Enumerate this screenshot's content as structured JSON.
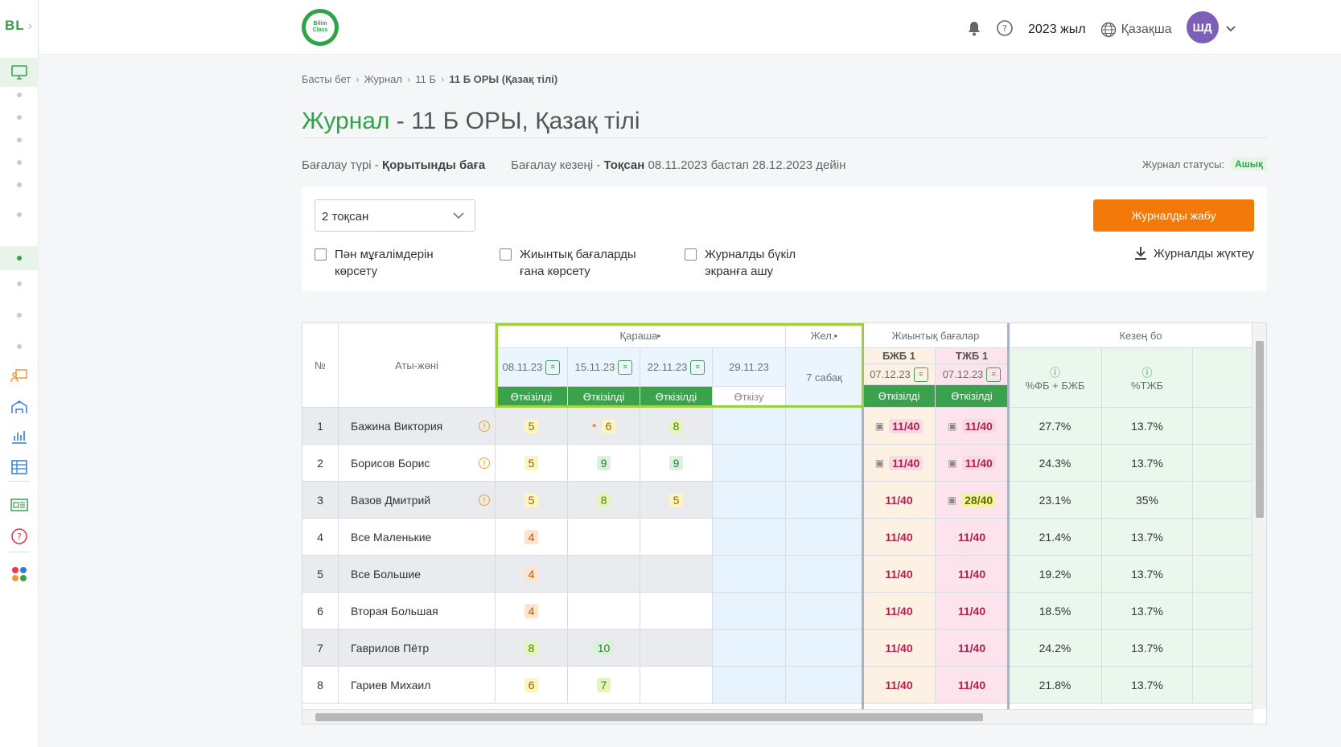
{
  "sidebar": {
    "logo": "BL"
  },
  "header": {
    "brand": "Bilim Class",
    "year": "2023 жыл",
    "language": "Қазақша",
    "avatar": "ШД"
  },
  "breadcrumb": [
    "Басты бет",
    "Журнал",
    "11 Б",
    "11 Б ОРЫ (Қазақ тілі)"
  ],
  "title": {
    "green": "Журнал",
    "rest": " - 11 Б ОРЫ, Қазақ тілі"
  },
  "meta": {
    "type_label": "Бағалау түрі - ",
    "type_value": "Қорытынды баға",
    "period_label": "Бағалау кезеңі - ",
    "period_value": "Тоқсан",
    "period_range": " 08.11.2023 бастап 28.12.2023 дейін",
    "status_label": "Журнал статусы:",
    "status_value": "Ашық"
  },
  "controls": {
    "select_value": "2 тоқсан",
    "close_button": "Журналды жабу",
    "download": "Журналды жүктеу",
    "checkboxes": [
      {
        "l1": "Пән мұғалімдерін",
        "l2": "көрсету"
      },
      {
        "l1": "Жиынтық бағаларды",
        "l2": "ғана көрсету"
      },
      {
        "l1": "Журналды бүкіл",
        "l2": "экранға ашу"
      }
    ]
  },
  "table": {
    "col_no": "№",
    "col_name": "Аты-жөні",
    "month1": "Қараша",
    "month2": "Жел.",
    "summary": "Жиынтық бағалар",
    "period": "Кезең бо",
    "dates": [
      "08.11.23",
      "15.11.23",
      "22.11.23",
      "29.11.23"
    ],
    "lessons": "7 сабақ",
    "bands": [
      "Өткізілді",
      "Өткізілді",
      "Өткізілді",
      "Өткізу"
    ],
    "bjb": {
      "label": "БЖБ 1",
      "date": "07.12.23",
      "band": "Өткізілді"
    },
    "tjb": {
      "label": "ТЖБ 1",
      "date": "07.12.23",
      "band": "Өткізілді"
    },
    "pct1": "%ФБ + БЖБ",
    "pct2": "%ТЖБ",
    "rows": [
      {
        "no": "1",
        "name": "Бажина Виктория",
        "info": true,
        "g": [
          "5",
          "6",
          "8"
        ],
        "bjb": "11/40",
        "tjb": "11/40",
        "p1": "27.7%",
        "p2": "13.7%"
      },
      {
        "no": "2",
        "name": "Борисов Борис",
        "info": true,
        "g": [
          "5",
          "9",
          "9"
        ],
        "bjb": "11/40",
        "tjb": "11/40",
        "p1": "24.3%",
        "p2": "13.7%"
      },
      {
        "no": "3",
        "name": "Вазов Дмитрий",
        "info": true,
        "g": [
          "5",
          "8",
          "5"
        ],
        "bjb": "11/40",
        "tjb": "28/40",
        "p1": "23.1%",
        "p2": "35%"
      },
      {
        "no": "4",
        "name": "Все Маленькие",
        "info": false,
        "g": [
          "4",
          "",
          ""
        ],
        "bjb": "11/40",
        "tjb": "11/40",
        "p1": "21.4%",
        "p2": "13.7%"
      },
      {
        "no": "5",
        "name": "Все Большие",
        "info": false,
        "g": [
          "4",
          "",
          ""
        ],
        "bjb": "11/40",
        "tjb": "11/40",
        "p1": "19.2%",
        "p2": "13.7%"
      },
      {
        "no": "6",
        "name": "Вторая Большая",
        "info": false,
        "g": [
          "4",
          "",
          ""
        ],
        "bjb": "11/40",
        "tjb": "11/40",
        "p1": "18.5%",
        "p2": "13.7%"
      },
      {
        "no": "7",
        "name": "Гаврилов Пётр",
        "info": false,
        "g": [
          "8",
          "10",
          ""
        ],
        "bjb": "11/40",
        "tjb": "11/40",
        "p1": "24.2%",
        "p2": "13.7%"
      },
      {
        "no": "8",
        "name": "Гариев Михаил",
        "info": false,
        "g": [
          "6",
          "7",
          ""
        ],
        "bjb": "11/40",
        "tjb": "11/40",
        "p1": "21.8%",
        "p2": "13.7%"
      }
    ]
  }
}
